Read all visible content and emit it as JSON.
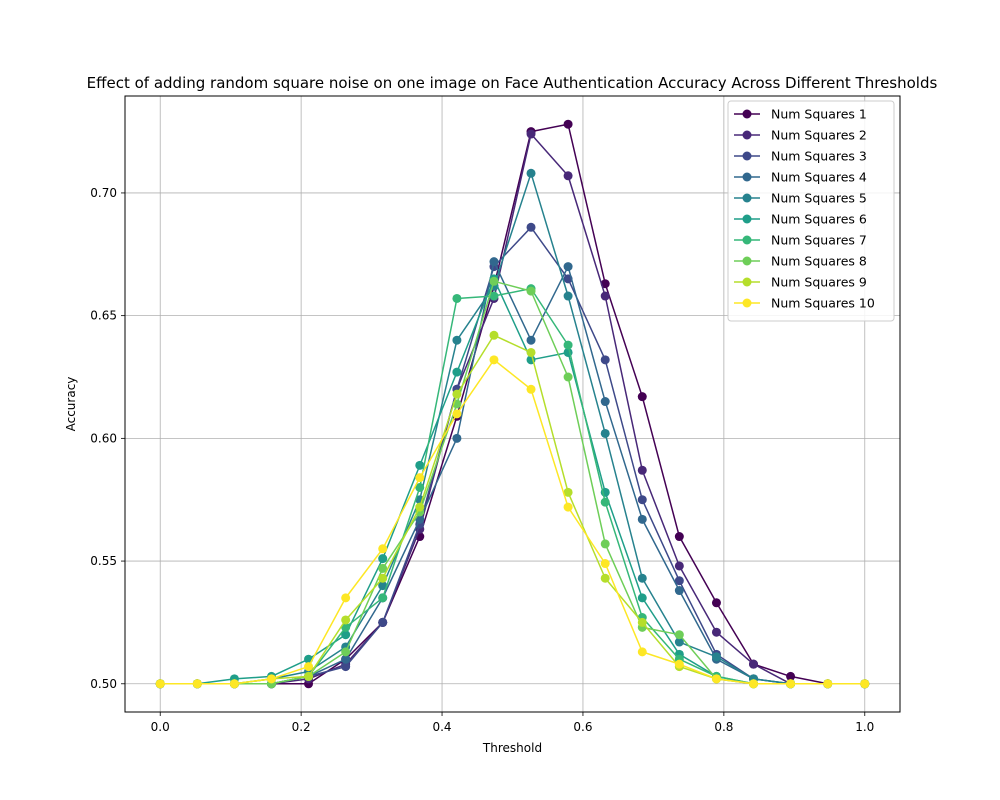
{
  "chart_data": {
    "type": "line",
    "title": "Effect of adding random square noise on one image on Face Authentication Accuracy Across Different Thresholds",
    "xlabel": "Threshold",
    "ylabel": "Accuracy",
    "xlim": [
      -0.05,
      1.05
    ],
    "ylim": [
      0.4885,
      0.7395
    ],
    "xticks": [
      0.0,
      0.2,
      0.4,
      0.6,
      0.8,
      1.0
    ],
    "xtick_labels": [
      "0.0",
      "0.2",
      "0.4",
      "0.6",
      "0.8",
      "1.0"
    ],
    "yticks": [
      0.5,
      0.55,
      0.6,
      0.65,
      0.7
    ],
    "ytick_labels": [
      "0.50",
      "0.55",
      "0.60",
      "0.65",
      "0.70"
    ],
    "grid": true,
    "legend_position": "top-right",
    "x": [
      0.0,
      0.0526,
      0.1053,
      0.1579,
      0.2105,
      0.2632,
      0.3158,
      0.3684,
      0.4211,
      0.4737,
      0.5263,
      0.5789,
      0.6316,
      0.6842,
      0.7368,
      0.7895,
      0.8421,
      0.8947,
      0.9474,
      1.0
    ],
    "series": [
      {
        "name": "Num Squares 1",
        "color": "#440154",
        "values": [
          0.5,
          0.5,
          0.5,
          0.5,
          0.5,
          0.51,
          0.525,
          0.56,
          0.609,
          0.662,
          0.725,
          0.728,
          0.663,
          0.617,
          0.56,
          0.533,
          0.508,
          0.503,
          0.5,
          0.5
        ]
      },
      {
        "name": "Num Squares 2",
        "color": "#482878",
        "values": [
          0.5,
          0.5,
          0.5,
          0.5,
          0.502,
          0.508,
          0.525,
          0.563,
          0.62,
          0.657,
          0.724,
          0.707,
          0.658,
          0.587,
          0.548,
          0.521,
          0.508,
          0.5,
          0.5,
          0.5
        ]
      },
      {
        "name": "Num Squares 3",
        "color": "#3e4989",
        "values": [
          0.5,
          0.5,
          0.5,
          0.5,
          0.503,
          0.507,
          0.525,
          0.565,
          0.62,
          0.67,
          0.686,
          0.665,
          0.632,
          0.575,
          0.542,
          0.512,
          0.502,
          0.5,
          0.5,
          0.5
        ]
      },
      {
        "name": "Num Squares 4",
        "color": "#31688e",
        "values": [
          0.5,
          0.5,
          0.5,
          0.5,
          0.503,
          0.51,
          0.535,
          0.567,
          0.6,
          0.672,
          0.64,
          0.67,
          0.615,
          0.567,
          0.538,
          0.51,
          0.502,
          0.5,
          0.5,
          0.5
        ]
      },
      {
        "name": "Num Squares 5",
        "color": "#26828e",
        "values": [
          0.5,
          0.5,
          0.5,
          0.502,
          0.505,
          0.515,
          0.54,
          0.575,
          0.64,
          0.662,
          0.708,
          0.658,
          0.602,
          0.543,
          0.517,
          0.511,
          0.502,
          0.5,
          0.5,
          0.5
        ]
      },
      {
        "name": "Num Squares 6",
        "color": "#1f9e89",
        "values": [
          0.5,
          0.5,
          0.502,
          0.503,
          0.51,
          0.52,
          0.551,
          0.589,
          0.627,
          0.665,
          0.632,
          0.635,
          0.578,
          0.535,
          0.512,
          0.503,
          0.5,
          0.5,
          0.5,
          0.5
        ]
      },
      {
        "name": "Num Squares 7",
        "color": "#35b779",
        "values": [
          0.5,
          0.5,
          0.5,
          0.5,
          0.503,
          0.523,
          0.535,
          0.58,
          0.657,
          0.658,
          0.661,
          0.638,
          0.574,
          0.527,
          0.51,
          0.503,
          0.5,
          0.5,
          0.5,
          0.5
        ]
      },
      {
        "name": "Num Squares 8",
        "color": "#6ece58",
        "values": [
          0.5,
          0.5,
          0.5,
          0.5,
          0.503,
          0.513,
          0.547,
          0.57,
          0.614,
          0.664,
          0.66,
          0.625,
          0.557,
          0.523,
          0.52,
          0.502,
          0.5,
          0.5,
          0.5,
          0.5
        ]
      },
      {
        "name": "Num Squares 9",
        "color": "#b5de2b",
        "values": [
          0.5,
          0.5,
          0.5,
          0.502,
          0.503,
          0.526,
          0.543,
          0.572,
          0.618,
          0.642,
          0.635,
          0.578,
          0.543,
          0.525,
          0.507,
          0.502,
          0.5,
          0.5,
          0.5,
          0.5
        ]
      },
      {
        "name": "Num Squares 10",
        "color": "#fde725",
        "values": [
          0.5,
          0.5,
          0.5,
          0.502,
          0.507,
          0.535,
          0.555,
          0.584,
          0.61,
          0.632,
          0.62,
          0.572,
          0.549,
          0.513,
          0.508,
          0.502,
          0.5,
          0.5,
          0.5,
          0.5
        ]
      }
    ]
  }
}
